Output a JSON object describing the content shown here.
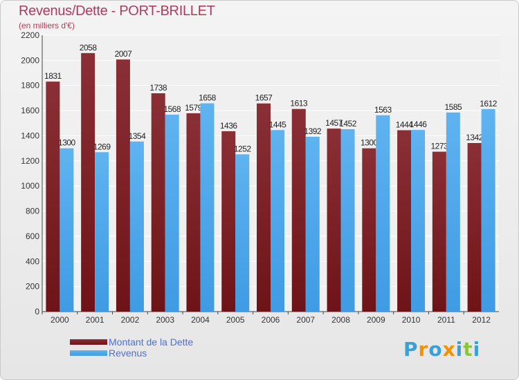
{
  "chart_data": {
    "type": "bar",
    "title": "Revenus/Dette - PORT-BRILLET",
    "subtitle": "(en milliers d'€)",
    "categories": [
      "2000",
      "2001",
      "2002",
      "2003",
      "2004",
      "2005",
      "2006",
      "2007",
      "2008",
      "2009",
      "2010",
      "2011",
      "2012"
    ],
    "series": [
      {
        "name": "Montant de la Dette",
        "color": "#6e1418",
        "values": [
          1831,
          2058,
          2007,
          1738,
          1579,
          1436,
          1657,
          1613,
          1457,
          1300,
          1444,
          1273,
          1342
        ]
      },
      {
        "name": "Revenus",
        "color": "#3f9be3",
        "values": [
          1300,
          1269,
          1354,
          1568,
          1658,
          1252,
          1445,
          1392,
          1452,
          1563,
          1446,
          1585,
          1612
        ]
      }
    ],
    "ylim": [
      0,
      2200
    ],
    "yticks": [
      0,
      200,
      400,
      600,
      800,
      1000,
      1200,
      1400,
      1600,
      1800,
      2000,
      2200
    ],
    "grid": true,
    "legend_position": "bottom-left"
  },
  "logo": {
    "text": "Proxiti",
    "colors": [
      "#3aa0d8",
      "#f39200",
      "#3aa0d8",
      "#f39200",
      "#3aa0d8",
      "#8cc63f",
      "#3aa0d8"
    ]
  }
}
